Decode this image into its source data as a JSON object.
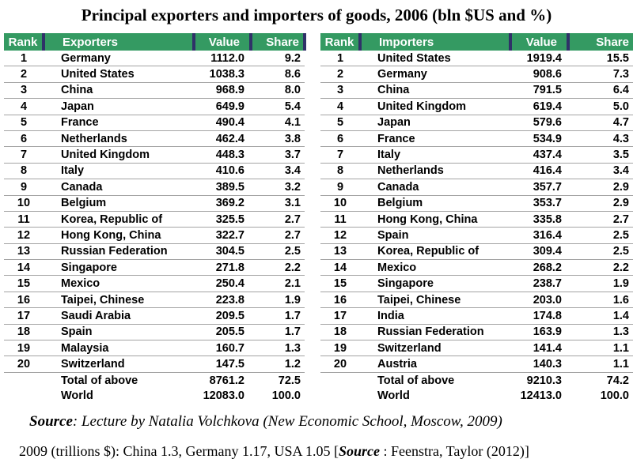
{
  "title": "Principal exporters and importers of goods, 2006 (bln $US and %)",
  "colors": {
    "header_green": "#349a62",
    "header_divider": "#2f3168",
    "row_border": "#a3a3a3"
  },
  "tables": [
    {
      "name": "exporters",
      "headers": [
        "Rank",
        "Exporters",
        "Value",
        "Share"
      ],
      "rows": [
        [
          "1",
          "Germany",
          "1112.0",
          "9.2"
        ],
        [
          "2",
          "United States",
          "1038.3",
          "8.6"
        ],
        [
          "3",
          "China",
          "968.9",
          "8.0"
        ],
        [
          "4",
          "Japan",
          "649.9",
          "5.4"
        ],
        [
          "5",
          "France",
          "490.4",
          "4.1"
        ],
        [
          "6",
          "Netherlands",
          "462.4",
          "3.8"
        ],
        [
          "7",
          "United Kingdom",
          "448.3",
          "3.7"
        ],
        [
          "8",
          "Italy",
          "410.6",
          "3.4"
        ],
        [
          "9",
          "Canada",
          "389.5",
          "3.2"
        ],
        [
          "10",
          "Belgium",
          "369.2",
          "3.1"
        ],
        [
          "11",
          "Korea, Republic of",
          "325.5",
          "2.7"
        ],
        [
          "12",
          "Hong Kong, China",
          "322.7",
          "2.7"
        ],
        [
          "13",
          "Russian Federation",
          "304.5",
          "2.5"
        ],
        [
          "14",
          "Singapore",
          "271.8",
          "2.2"
        ],
        [
          "15",
          "Mexico",
          "250.4",
          "2.1"
        ],
        [
          "16",
          "Taipei, Chinese",
          "223.8",
          "1.9"
        ],
        [
          "17",
          "Saudi Arabia",
          "209.5",
          "1.7"
        ],
        [
          "18",
          "Spain",
          "205.5",
          "1.7"
        ],
        [
          "19",
          "Malaysia",
          "160.7",
          "1.3"
        ],
        [
          "20",
          "Switzerland",
          "147.5",
          "1.2"
        ]
      ],
      "totals": [
        [
          "Total of above",
          "8761.2",
          "72.5"
        ],
        [
          "World",
          "12083.0",
          "100.0"
        ]
      ]
    },
    {
      "name": "importers",
      "headers": [
        "Rank",
        "Importers",
        "Value",
        "Share"
      ],
      "rows": [
        [
          "1",
          "United States",
          "1919.4",
          "15.5"
        ],
        [
          "2",
          "Germany",
          "908.6",
          "7.3"
        ],
        [
          "3",
          "China",
          "791.5",
          "6.4"
        ],
        [
          "4",
          "United Kingdom",
          "619.4",
          "5.0"
        ],
        [
          "5",
          "Japan",
          "579.6",
          "4.7"
        ],
        [
          "6",
          "France",
          "534.9",
          "4.3"
        ],
        [
          "7",
          "Italy",
          "437.4",
          "3.5"
        ],
        [
          "8",
          "Netherlands",
          "416.4",
          "3.4"
        ],
        [
          "9",
          "Canada",
          "357.7",
          "2.9"
        ],
        [
          "10",
          "Belgium",
          "353.7",
          "2.9"
        ],
        [
          "11",
          "Hong Kong, China",
          "335.8",
          "2.7"
        ],
        [
          "12",
          "Spain",
          "316.4",
          "2.5"
        ],
        [
          "13",
          "Korea, Republic of",
          "309.4",
          "2.5"
        ],
        [
          "14",
          "Mexico",
          "268.2",
          "2.2"
        ],
        [
          "15",
          "Singapore",
          "238.7",
          "1.9"
        ],
        [
          "16",
          "Taipei, Chinese",
          "203.0",
          "1.6"
        ],
        [
          "17",
          "India",
          "174.8",
          "1.4"
        ],
        [
          "18",
          "Russian Federation",
          "163.9",
          "1.3"
        ],
        [
          "19",
          "Switzerland",
          "141.4",
          "1.1"
        ],
        [
          "20",
          "Austria",
          "140.3",
          "1.1"
        ]
      ],
      "totals": [
        [
          "Total of above",
          "9210.3",
          "74.2"
        ],
        [
          "World",
          "12413.0",
          "100.0"
        ]
      ]
    }
  ],
  "footnotes": {
    "line1_label": "Source",
    "line1_text": ": Lecture by Natalia Volchkova (New Economic School, Moscow, 2009)",
    "line2_prefix": "2009 (trillions $): China 1.3, Germany 1.17, USA 1.05 [",
    "line2_label": "Source",
    "line2_suffix": " : Feenstra, Taylor (2012)]"
  }
}
